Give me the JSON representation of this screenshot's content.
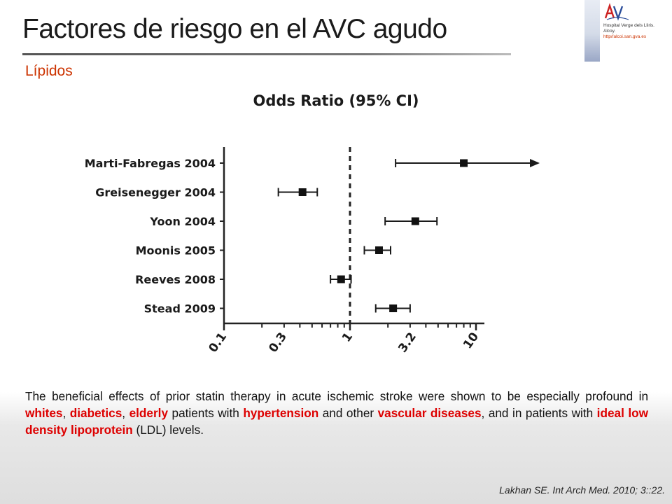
{
  "slide": {
    "title": "Factores de riesgo en el AVC agudo",
    "subtitle": "Lípidos",
    "logo": {
      "line1": "Hospital Verge dels Lliris.",
      "line2": "Alcoy.",
      "url": "http//alcoi.san.gva.es"
    },
    "body": {
      "p1": "The beneficial effects of prior statin therapy in acute ischemic stroke were shown to be especially profound in ",
      "w1": "whites",
      "s1": ", ",
      "w2": "diabetics",
      "s2": ", ",
      "w3": "elderly",
      "s3": " patients with ",
      "w4": "hypertension",
      "s4": " and other ",
      "w5": "vascular diseases",
      "s5": ", and in patients with ",
      "w6": "ideal low density lipoprotein",
      "s6": " (LDL) levels."
    },
    "citation": "Lakhan SE. Int Arch Med. 2010; 3::22.",
    "colors": {
      "title_text": "#1a1a1a",
      "accent": "#cc3300",
      "highlight": "#dd0000"
    }
  },
  "chart_data": {
    "type": "forest",
    "title": "Odds Ratio (95% CI)",
    "x_scale": "log",
    "xlim": [
      0.1,
      15
    ],
    "ticks": [
      "0.1",
      "0.3",
      "1",
      "3.2",
      "10"
    ],
    "reference_line": 1,
    "studies": [
      {
        "label": "Marti-Fabregas 2004",
        "or": 8.0,
        "lower": 2.3,
        "upper": 15,
        "arrow": true
      },
      {
        "label": "Greisenegger 2004",
        "or": 0.42,
        "lower": 0.27,
        "upper": 0.55
      },
      {
        "label": "Yoon 2004",
        "or": 3.3,
        "lower": 1.9,
        "upper": 4.9
      },
      {
        "label": "Moonis 2005",
        "or": 1.7,
        "lower": 1.3,
        "upper": 2.1
      },
      {
        "label": "Reeves 2008",
        "or": 0.85,
        "lower": 0.7,
        "upper": 1.02
      },
      {
        "label": "Stead 2009",
        "or": 2.2,
        "lower": 1.6,
        "upper": 3.0
      }
    ]
  }
}
